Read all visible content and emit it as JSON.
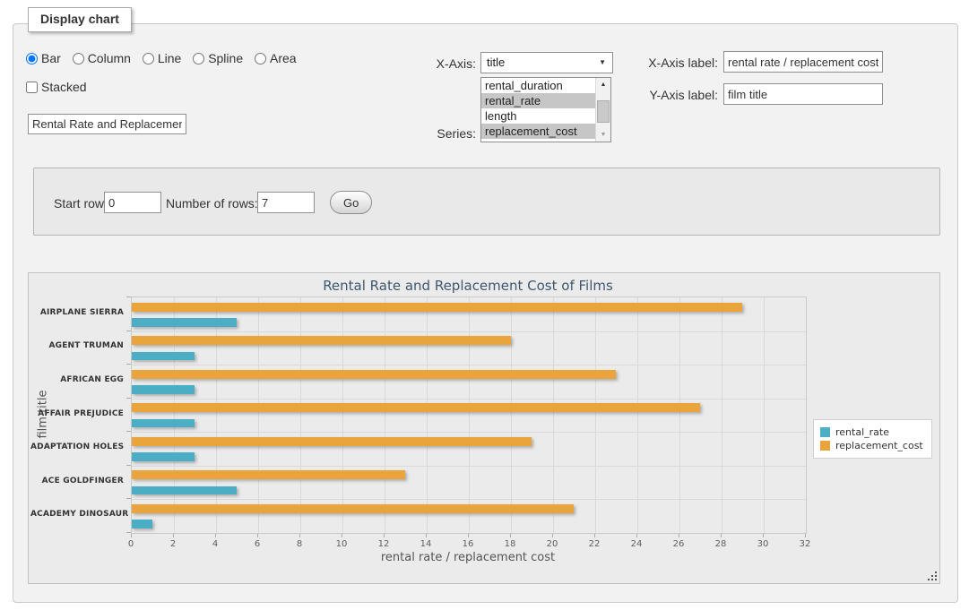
{
  "form": {
    "legend": "Display chart",
    "chart_types": [
      {
        "label": "Bar",
        "checked": "checked"
      },
      {
        "label": "Column"
      },
      {
        "label": "Line"
      },
      {
        "label": "Spline"
      },
      {
        "label": "Area"
      }
    ],
    "stacked_label": "Stacked",
    "title_input_value": "Rental Rate and Replacement Cost of Films",
    "x_axis_label_text": "X-Axis:",
    "x_axis_selected": "title",
    "series_label_text": "Series:",
    "series_options": [
      {
        "label": "rental_duration",
        "selected": false
      },
      {
        "label": "rental_rate",
        "selected": true
      },
      {
        "label": "length",
        "selected": false
      },
      {
        "label": "replacement_cost",
        "selected": true
      }
    ],
    "x_axis_label_label": "X-Axis label:",
    "x_axis_label_value": "rental rate / replacement cost",
    "y_axis_label_label": "Y-Axis label:",
    "y_axis_label_value": "film title"
  },
  "row_selector": {
    "start_row_label": "Start row:",
    "start_row_value": "0",
    "num_rows_label": "Number of rows:",
    "num_rows_value": "7",
    "go_label": "Go"
  },
  "chart_data": {
    "type": "bar",
    "title": "Rental Rate and Replacement Cost of Films",
    "categories": [
      "AIRPLANE SIERRA",
      "AGENT TRUMAN",
      "AFRICAN EGG",
      "AFFAIR PREJUDICE",
      "ADAPTATION HOLES",
      "ACE GOLDFINGER",
      "ACADEMY DINOSAUR"
    ],
    "series": [
      {
        "name": "rental_rate",
        "color": "#4BAEC4",
        "values": [
          4.99,
          2.99,
          2.99,
          2.99,
          2.99,
          4.99,
          0.99
        ]
      },
      {
        "name": "replacement_cost",
        "color": "#E9A43C",
        "values": [
          28.99,
          17.99,
          22.99,
          26.99,
          18.99,
          12.99,
          20.99
        ]
      }
    ],
    "xlabel": "rental rate / replacement cost",
    "ylabel": "film title",
    "xlim": [
      0,
      32
    ],
    "xtick_step": 2,
    "grid": true,
    "legend_position": "right"
  }
}
